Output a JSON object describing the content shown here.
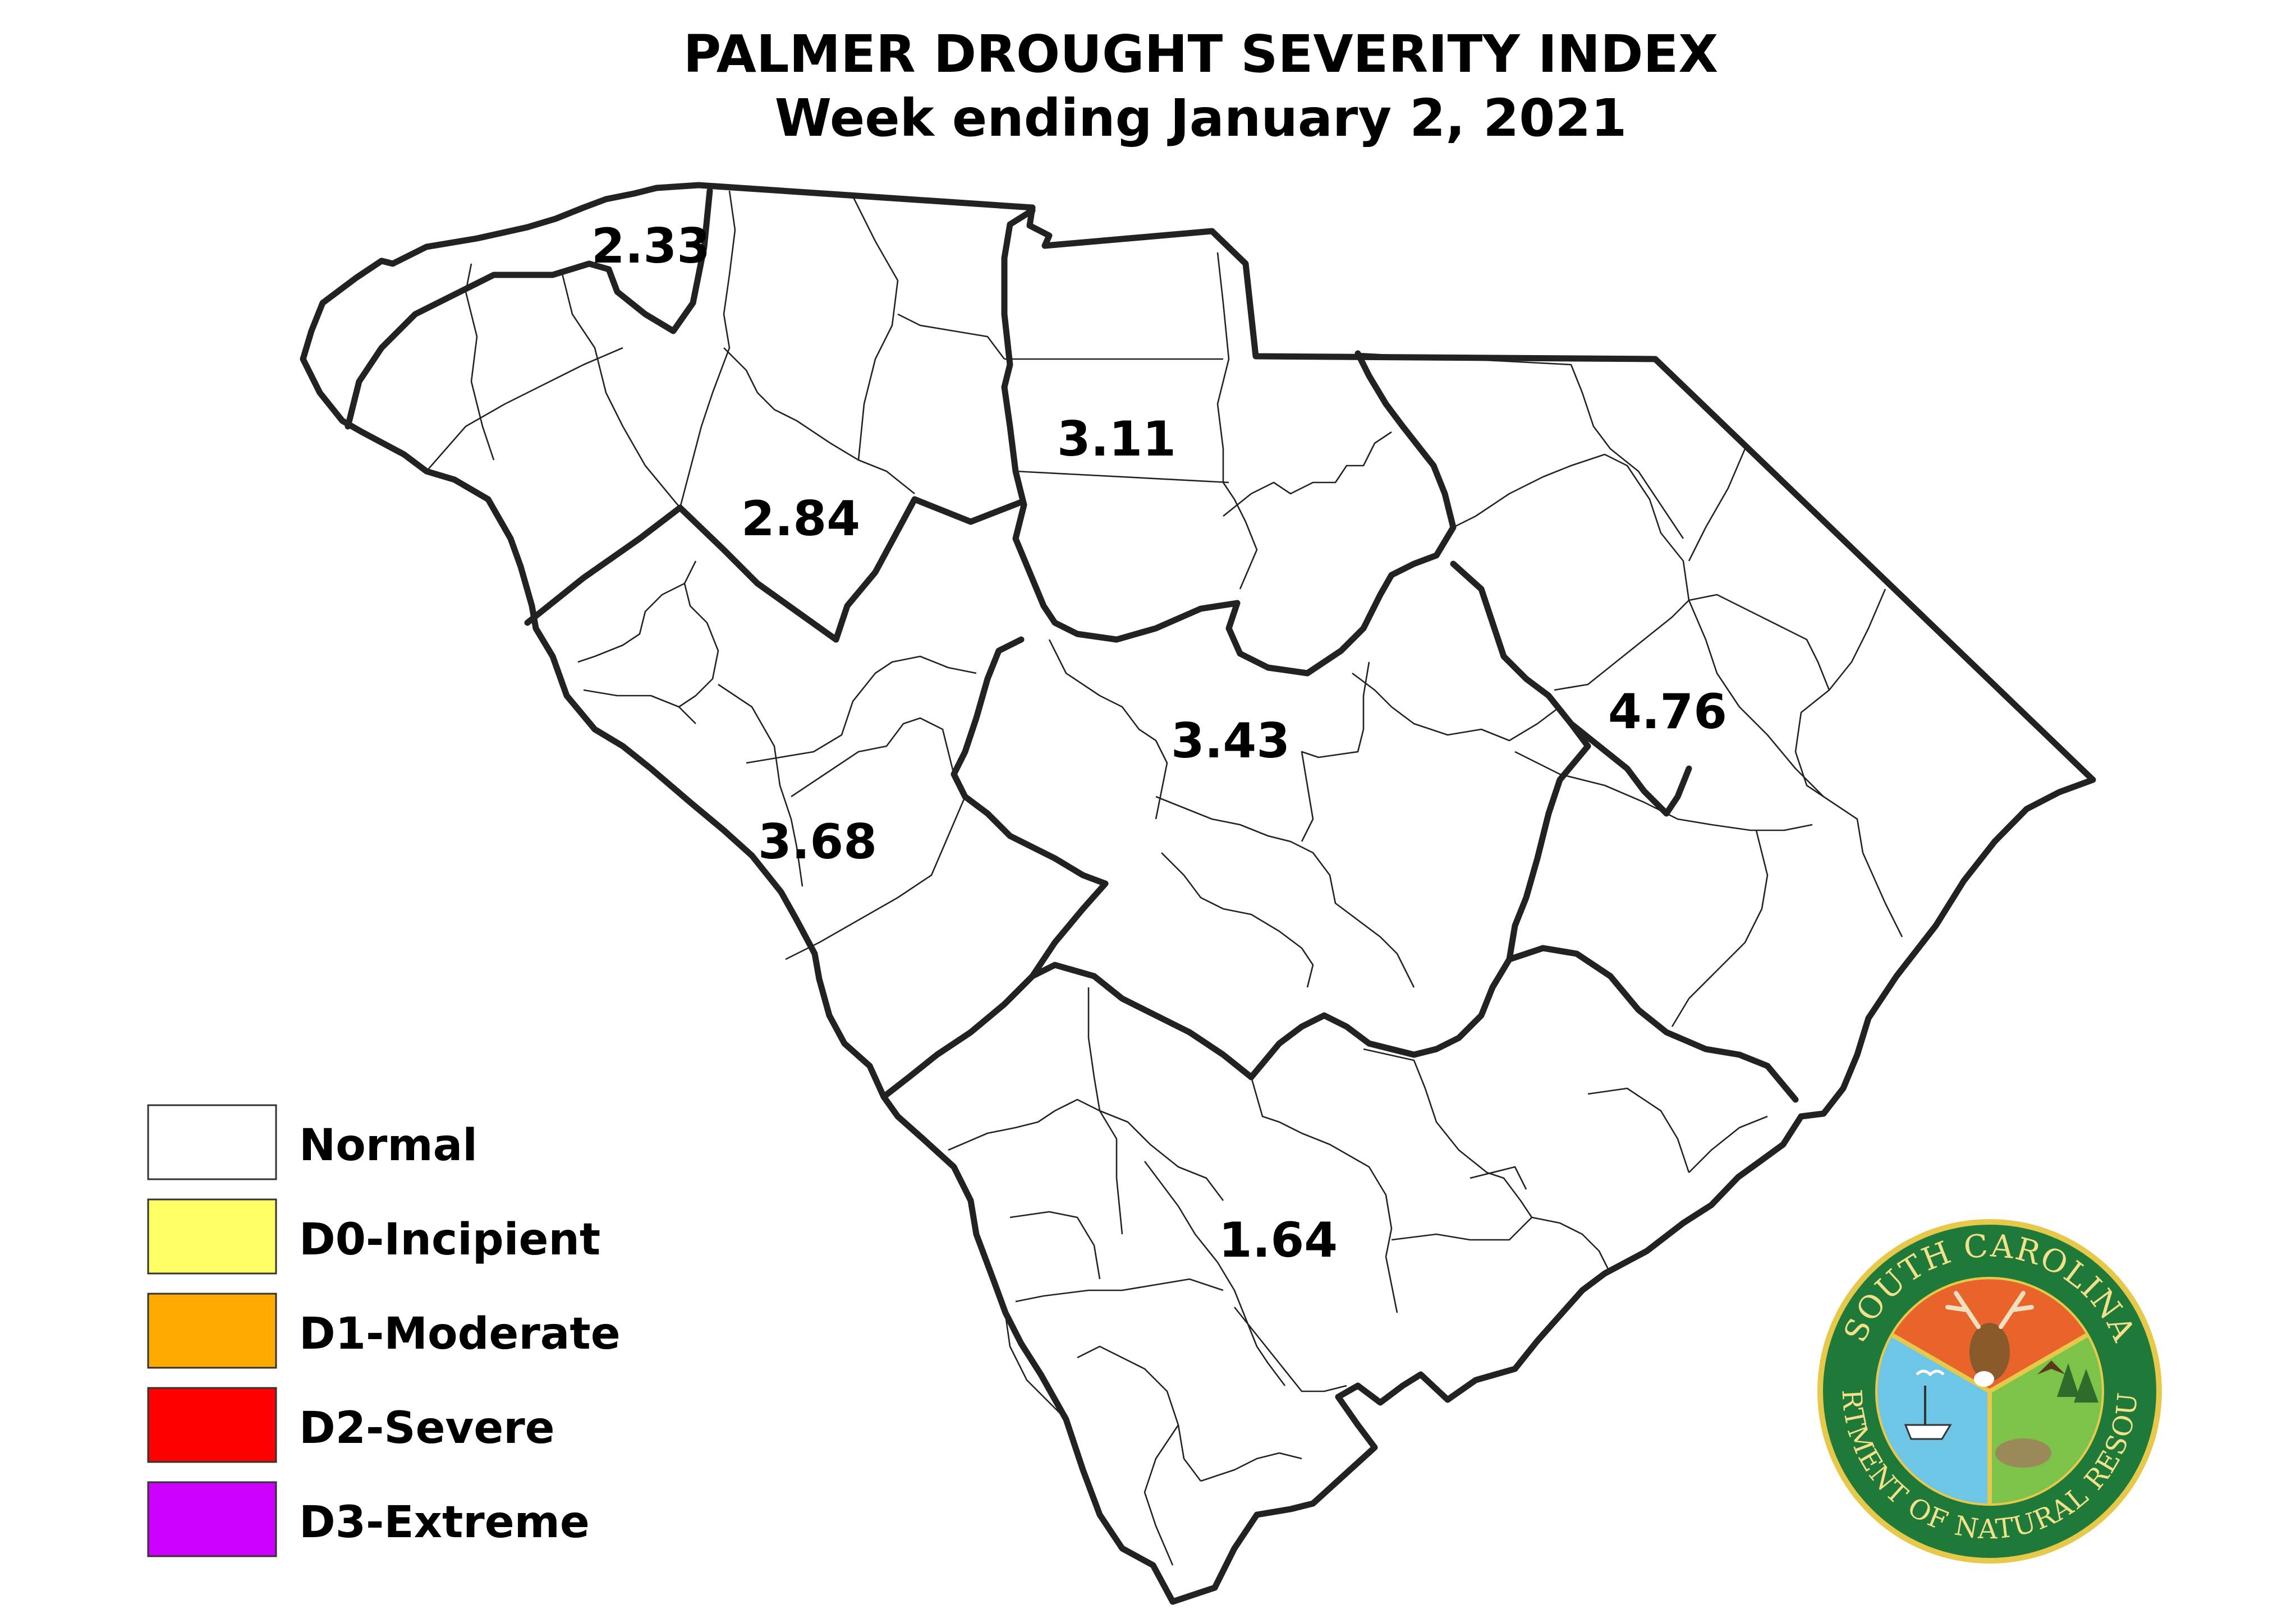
{
  "title": {
    "line1": "PALMER DROUGHT SEVERITY INDEX",
    "line2": "Week ending January 2, 2021"
  },
  "divisions": [
    {
      "id": "mountain",
      "value": "2.33",
      "category": "Normal"
    },
    {
      "id": "northwest",
      "value": "2.84",
      "category": "Normal"
    },
    {
      "id": "north-central",
      "value": "3.11",
      "category": "Normal"
    },
    {
      "id": "west-central",
      "value": "3.68",
      "category": "Normal"
    },
    {
      "id": "central",
      "value": "3.43",
      "category": "Normal"
    },
    {
      "id": "northeast",
      "value": "4.76",
      "category": "Normal"
    },
    {
      "id": "southern",
      "value": "1.64",
      "category": "Normal"
    }
  ],
  "legend": [
    {
      "label": "Normal",
      "color": "#ffffff"
    },
    {
      "label": "D0-Incipient",
      "color": "#ffff66"
    },
    {
      "label": "D1-Moderate",
      "color": "#ffaa00"
    },
    {
      "label": "D2-Severe",
      "color": "#ff0000"
    },
    {
      "label": "D3-Extreme",
      "color": "#cc00ff"
    }
  ],
  "seal": {
    "top_text": "SOUTH CAROLINA",
    "bottom_text": "DEPARTMENT OF NATURAL RESOURCES",
    "colors": {
      "ring": "#1f7a3a",
      "rim": "#e6c84a",
      "orange": "#e8642a",
      "blue": "#6ec6e6",
      "green": "#7dc34a"
    }
  }
}
